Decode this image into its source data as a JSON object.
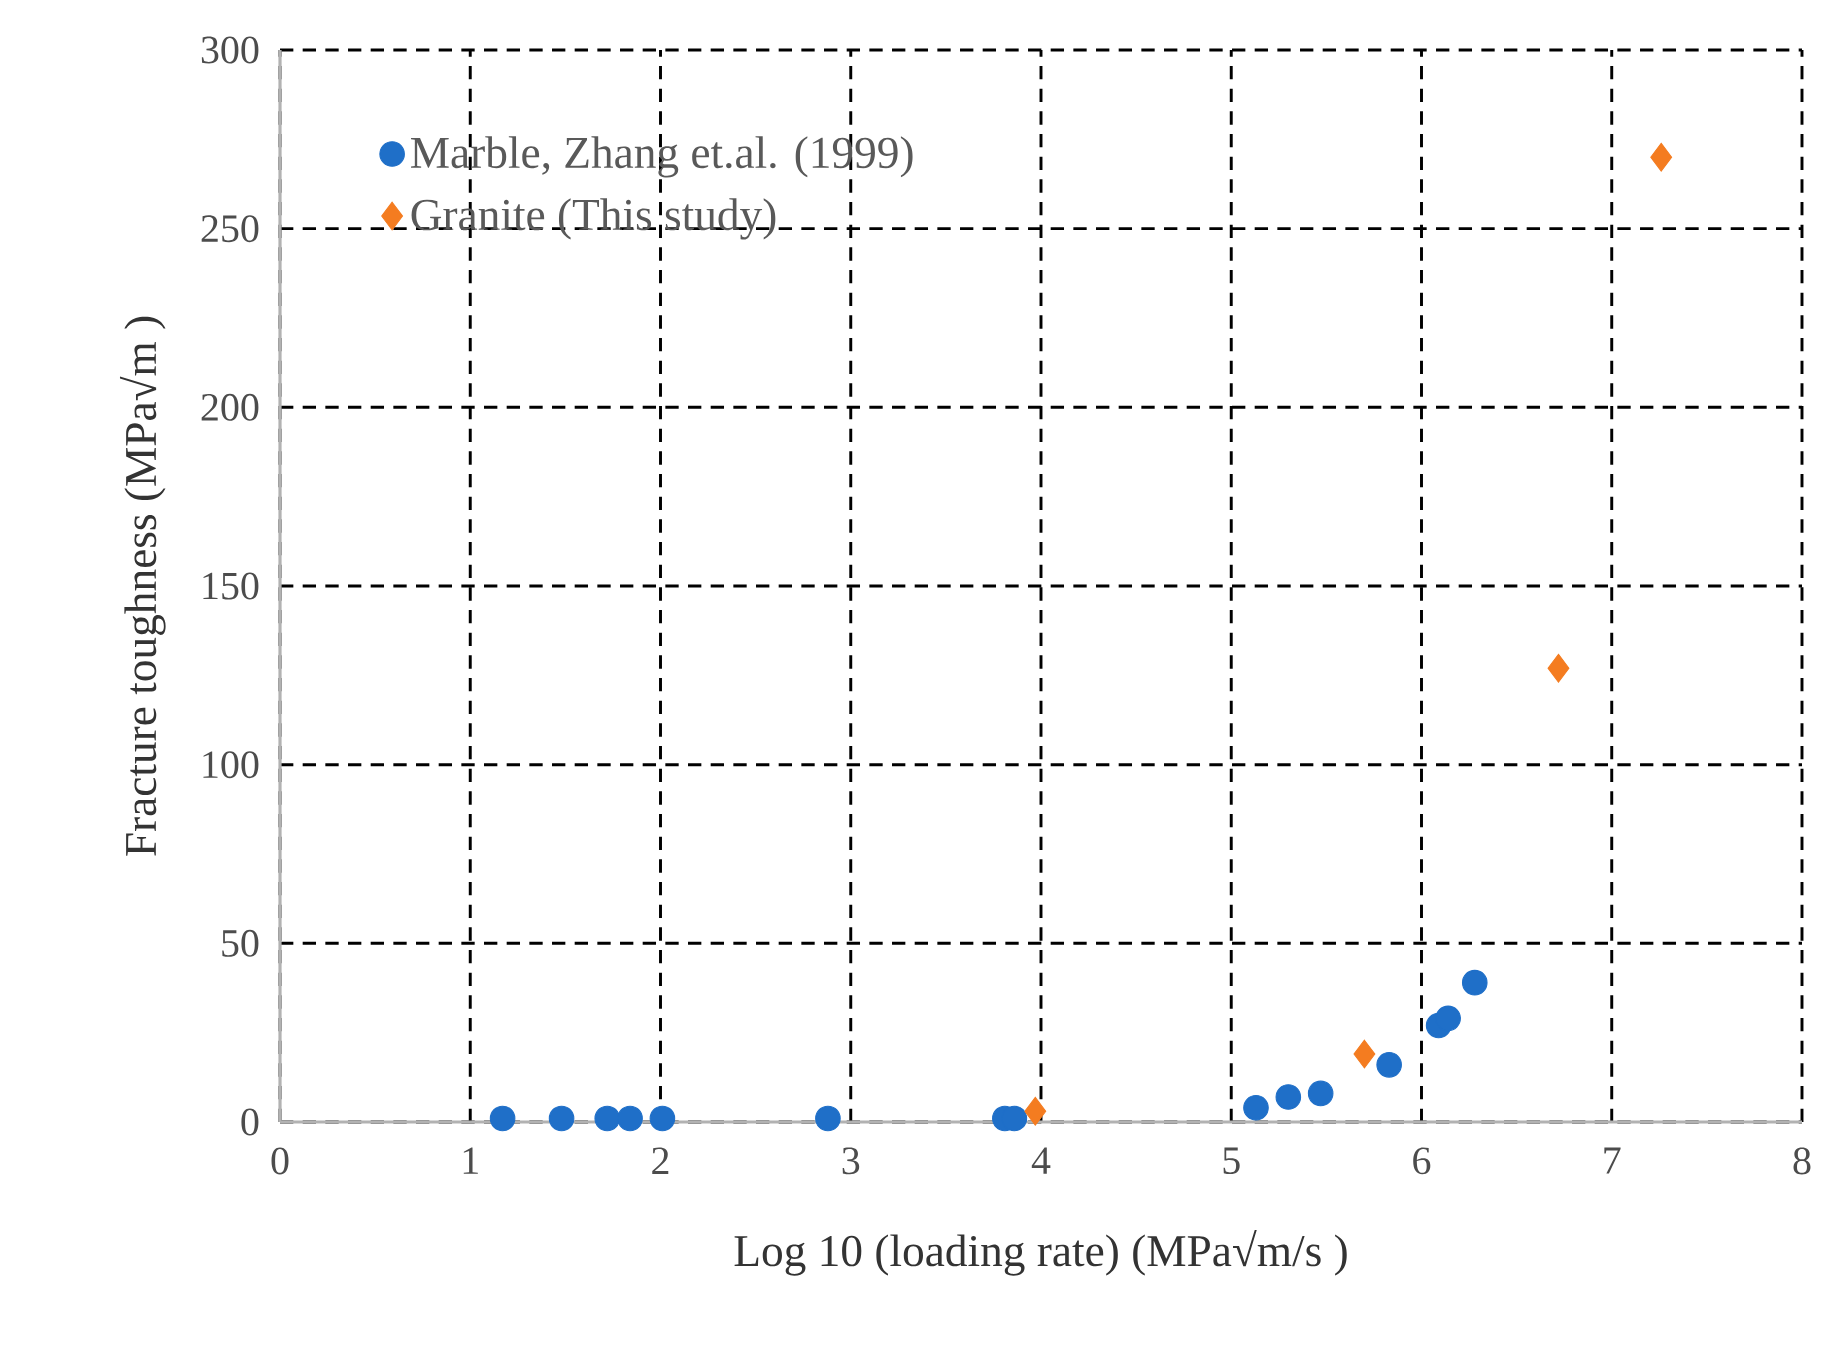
{
  "chart_data": {
    "type": "scatter",
    "xlabel": "Log 10 (loading rate) (MPa√m/s )",
    "ylabel": "Fracture toughness (MPa√m )",
    "series": [
      {
        "name": "Marble, Zhang et.al. (1999)",
        "color": "#1f6fc8",
        "marker": "circle",
        "x": [
          1.17,
          1.48,
          1.72,
          1.84,
          2.01,
          2.88,
          3.81,
          3.86,
          5.13,
          5.3,
          5.47,
          5.83,
          6.09,
          6.14,
          6.28
        ],
        "values": [
          1,
          1,
          1,
          1,
          1,
          1,
          1,
          1,
          4,
          7,
          8,
          16,
          27,
          29,
          39
        ]
      },
      {
        "name": "Granite (This study)",
        "color": "#f47c20",
        "marker": "diamond",
        "x": [
          3.97,
          5.7,
          6.72,
          7.26
        ],
        "values": [
          3,
          19,
          127,
          270
        ]
      }
    ],
    "xlim": [
      0,
      8
    ],
    "ylim": [
      0,
      300
    ],
    "xticks": [
      0,
      1,
      2,
      3,
      4,
      5,
      6,
      7,
      8
    ],
    "yticks": [
      0,
      50,
      100,
      150,
      200,
      250,
      300
    ],
    "grid": true,
    "legend": "top left"
  }
}
